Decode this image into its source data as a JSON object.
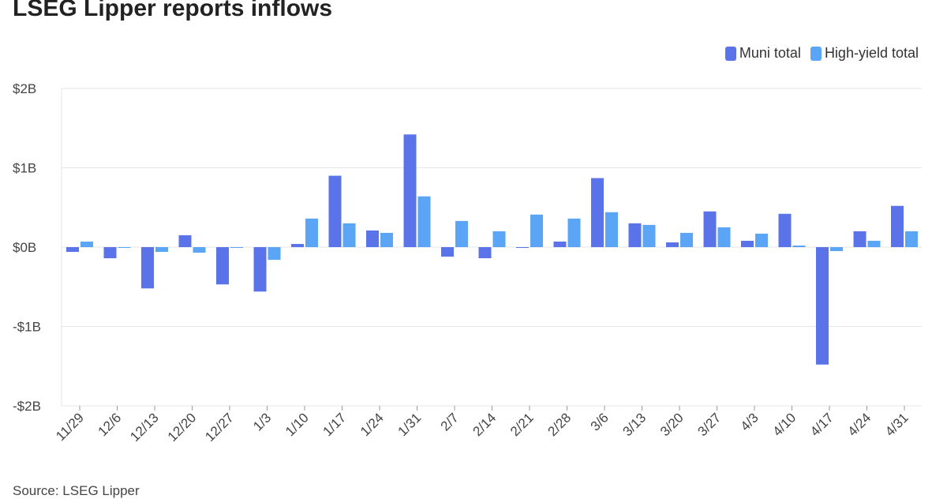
{
  "title": "LSEG Lipper reports inflows",
  "source": "Source: LSEG Lipper",
  "chart_data": {
    "type": "bar",
    "title": "LSEG Lipper reports inflows",
    "xlabel": "",
    "ylabel": "",
    "ylim": [
      -2,
      2
    ],
    "yticks": [
      2,
      1,
      0,
      -1,
      -2
    ],
    "ytick_labels": [
      "$2B",
      "$1B",
      "$0B",
      "-$1B",
      "-$2B"
    ],
    "grid": true,
    "legend_position": "top-right",
    "categories": [
      "11/29",
      "12/6",
      "12/13",
      "12/20",
      "12/27",
      "1/3",
      "1/10",
      "1/17",
      "1/24",
      "1/31",
      "2/7",
      "2/14",
      "2/21",
      "2/28",
      "3/6",
      "3/13",
      "3/20",
      "3/27",
      "4/3",
      "4/10",
      "4/17",
      "4/24",
      "4/31"
    ],
    "series": [
      {
        "name": "Muni total",
        "color": "#5b73e8",
        "values": [
          -0.06,
          -0.14,
          -0.52,
          0.15,
          -0.47,
          -0.56,
          0.04,
          0.9,
          0.21,
          1.42,
          -0.12,
          -0.14,
          -0.01,
          0.07,
          0.87,
          0.3,
          0.06,
          0.45,
          0.08,
          0.42,
          -1.48,
          0.2,
          0.52
        ]
      },
      {
        "name": "High-yield total",
        "color": "#5aa5f5",
        "values": [
          0.07,
          -0.01,
          -0.06,
          -0.07,
          -0.01,
          -0.16,
          0.36,
          0.3,
          0.18,
          0.64,
          0.33,
          0.2,
          0.41,
          0.36,
          0.44,
          0.28,
          0.18,
          0.25,
          0.17,
          0.02,
          -0.05,
          0.08,
          0.2
        ]
      }
    ]
  }
}
